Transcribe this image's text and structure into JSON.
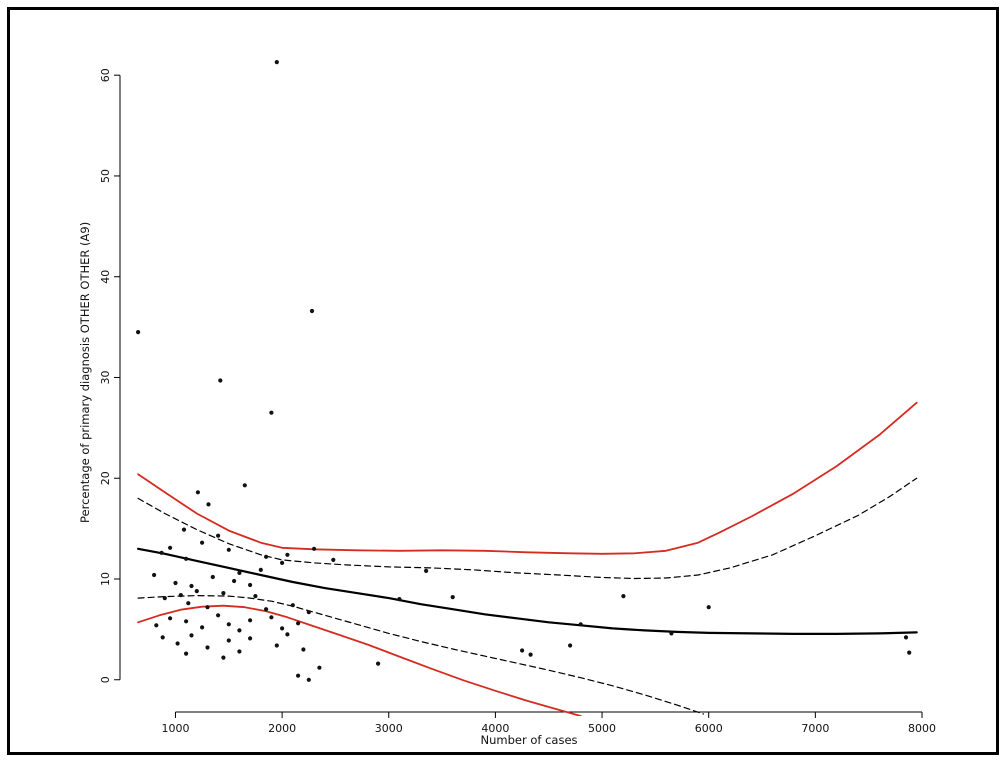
{
  "figure": {
    "frame_color": "#000000",
    "background": "#ffffff"
  },
  "chart_data": {
    "type": "scatter",
    "title": "",
    "xlabel": "Number of cases",
    "ylabel": "Percentage of primary diagnosis OTHER OTHER (A9)",
    "xlim": [
      480,
      8150
    ],
    "ylim": [
      -3.2,
      62.5
    ],
    "x_ticks": [
      1000,
      2000,
      3000,
      4000,
      5000,
      6000,
      7000,
      8000
    ],
    "y_ticks": [
      0,
      10,
      20,
      30,
      40,
      50,
      60
    ],
    "grid": false,
    "legend_position": "none",
    "point_color": "#111111",
    "point_radius": 2.1,
    "points": [
      [
        1950,
        61.3
      ],
      [
        2280,
        36.6
      ],
      [
        650,
        34.5
      ],
      [
        1420,
        29.7
      ],
      [
        1900,
        26.5
      ],
      [
        1650,
        19.3
      ],
      [
        1210,
        18.6
      ],
      [
        1310,
        17.4
      ],
      [
        1080,
        14.9
      ],
      [
        1400,
        14.3
      ],
      [
        950,
        13.1
      ],
      [
        1250,
        13.6
      ],
      [
        2300,
        13.0
      ],
      [
        1500,
        12.9
      ],
      [
        870,
        12.6
      ],
      [
        2050,
        12.4
      ],
      [
        1850,
        12.2
      ],
      [
        1100,
        12.0
      ],
      [
        2480,
        11.9
      ],
      [
        2000,
        11.6
      ],
      [
        800,
        10.4
      ],
      [
        1000,
        9.6
      ],
      [
        1150,
        9.3
      ],
      [
        1350,
        10.2
      ],
      [
        1550,
        9.8
      ],
      [
        1600,
        10.6
      ],
      [
        1700,
        9.4
      ],
      [
        1800,
        10.9
      ],
      [
        3350,
        10.8
      ],
      [
        900,
        8.1
      ],
      [
        1050,
        8.4
      ],
      [
        1120,
        7.6
      ],
      [
        1200,
        8.8
      ],
      [
        1300,
        7.2
      ],
      [
        1450,
        8.6
      ],
      [
        1750,
        8.3
      ],
      [
        1850,
        7.0
      ],
      [
        2100,
        7.4
      ],
      [
        2250,
        6.7
      ],
      [
        3100,
        8.0
      ],
      [
        3600,
        8.2
      ],
      [
        5200,
        8.3
      ],
      [
        6000,
        7.2
      ],
      [
        820,
        5.4
      ],
      [
        950,
        6.1
      ],
      [
        1100,
        5.8
      ],
      [
        1250,
        5.2
      ],
      [
        1400,
        6.4
      ],
      [
        1500,
        5.5
      ],
      [
        1600,
        4.9
      ],
      [
        1700,
        5.9
      ],
      [
        1900,
        6.2
      ],
      [
        2000,
        5.1
      ],
      [
        2150,
        5.6
      ],
      [
        4800,
        5.5
      ],
      [
        880,
        4.2
      ],
      [
        1020,
        3.6
      ],
      [
        1150,
        4.4
      ],
      [
        1300,
        3.2
      ],
      [
        1500,
        3.9
      ],
      [
        1700,
        4.1
      ],
      [
        1950,
        3.4
      ],
      [
        2050,
        4.5
      ],
      [
        2200,
        3.0
      ],
      [
        5650,
        4.6
      ],
      [
        4700,
        3.4
      ],
      [
        7850,
        4.2
      ],
      [
        1100,
        2.6
      ],
      [
        1450,
        2.2
      ],
      [
        1600,
        2.8
      ],
      [
        2150,
        0.4
      ],
      [
        2250,
        0.0
      ],
      [
        2350,
        1.2
      ],
      [
        2900,
        1.6
      ],
      [
        4250,
        2.9
      ],
      [
        4330,
        2.5
      ],
      [
        7880,
        2.7
      ]
    ],
    "series": [
      {
        "id": "loess-fit",
        "name": "smoothed fit (solid black)",
        "color": "#000000",
        "dash": "none",
        "width": 2.2,
        "points": [
          [
            650,
            13.0
          ],
          [
            900,
            12.5
          ],
          [
            1200,
            11.8
          ],
          [
            1500,
            11.1
          ],
          [
            1800,
            10.4
          ],
          [
            2100,
            9.7
          ],
          [
            2400,
            9.1
          ],
          [
            2700,
            8.6
          ],
          [
            3000,
            8.1
          ],
          [
            3300,
            7.5
          ],
          [
            3600,
            7.0
          ],
          [
            3900,
            6.5
          ],
          [
            4200,
            6.1
          ],
          [
            4500,
            5.7
          ],
          [
            4800,
            5.4
          ],
          [
            5100,
            5.1
          ],
          [
            5400,
            4.9
          ],
          [
            5700,
            4.75
          ],
          [
            6000,
            4.65
          ],
          [
            6400,
            4.6
          ],
          [
            6800,
            4.55
          ],
          [
            7200,
            4.55
          ],
          [
            7600,
            4.6
          ],
          [
            7950,
            4.7
          ]
        ]
      },
      {
        "id": "dashed-upper",
        "name": "upper confidence band (dashed)",
        "color": "#000000",
        "dash": "6,4",
        "width": 1.2,
        "points": [
          [
            650,
            18.0
          ],
          [
            900,
            16.5
          ],
          [
            1200,
            14.9
          ],
          [
            1500,
            13.5
          ],
          [
            1800,
            12.4
          ],
          [
            2000,
            11.9
          ],
          [
            2300,
            11.6
          ],
          [
            2600,
            11.4
          ],
          [
            3000,
            11.2
          ],
          [
            3400,
            11.1
          ],
          [
            3800,
            10.9
          ],
          [
            4200,
            10.6
          ],
          [
            4600,
            10.4
          ],
          [
            5000,
            10.15
          ],
          [
            5300,
            10.05
          ],
          [
            5600,
            10.1
          ],
          [
            5900,
            10.4
          ],
          [
            6200,
            11.1
          ],
          [
            6600,
            12.4
          ],
          [
            7000,
            14.3
          ],
          [
            7400,
            16.3
          ],
          [
            7700,
            18.2
          ],
          [
            7950,
            20.0
          ]
        ]
      },
      {
        "id": "dashed-lower",
        "name": "lower confidence band (dashed)",
        "color": "#000000",
        "dash": "6,4",
        "width": 1.2,
        "points": [
          [
            650,
            8.1
          ],
          [
            900,
            8.25
          ],
          [
            1200,
            8.35
          ],
          [
            1500,
            8.3
          ],
          [
            1700,
            8.1
          ],
          [
            1900,
            7.8
          ],
          [
            2100,
            7.3
          ],
          [
            2400,
            6.4
          ],
          [
            2700,
            5.5
          ],
          [
            3000,
            4.6
          ],
          [
            3300,
            3.8
          ],
          [
            3600,
            3.05
          ],
          [
            3900,
            2.35
          ],
          [
            4200,
            1.65
          ],
          [
            4500,
            0.95
          ],
          [
            4800,
            0.2
          ],
          [
            5100,
            -0.6
          ],
          [
            5400,
            -1.5
          ],
          [
            5700,
            -2.5
          ],
          [
            5950,
            -3.4
          ]
        ]
      },
      {
        "id": "red-upper",
        "name": "upper control limit (red)",
        "color": "#d62b20",
        "dash": "none",
        "width": 1.8,
        "points": [
          [
            650,
            20.4
          ],
          [
            900,
            18.6
          ],
          [
            1200,
            16.5
          ],
          [
            1500,
            14.8
          ],
          [
            1800,
            13.6
          ],
          [
            2000,
            13.1
          ],
          [
            2300,
            12.95
          ],
          [
            2700,
            12.85
          ],
          [
            3100,
            12.8
          ],
          [
            3500,
            12.85
          ],
          [
            3900,
            12.8
          ],
          [
            4300,
            12.65
          ],
          [
            4700,
            12.55
          ],
          [
            5000,
            12.5
          ],
          [
            5300,
            12.55
          ],
          [
            5600,
            12.8
          ],
          [
            5900,
            13.6
          ],
          [
            6100,
            14.6
          ],
          [
            6400,
            16.2
          ],
          [
            6800,
            18.5
          ],
          [
            7200,
            21.2
          ],
          [
            7600,
            24.3
          ],
          [
            7950,
            27.5
          ]
        ]
      },
      {
        "id": "red-lower",
        "name": "lower control limit (red)",
        "color": "#d62b20",
        "dash": "none",
        "width": 1.8,
        "points": [
          [
            650,
            5.7
          ],
          [
            850,
            6.4
          ],
          [
            1050,
            6.95
          ],
          [
            1250,
            7.25
          ],
          [
            1450,
            7.35
          ],
          [
            1650,
            7.2
          ],
          [
            1850,
            6.8
          ],
          [
            2050,
            6.2
          ],
          [
            2300,
            5.3
          ],
          [
            2550,
            4.4
          ],
          [
            2800,
            3.5
          ],
          [
            3100,
            2.3
          ],
          [
            3400,
            1.1
          ],
          [
            3700,
            -0.05
          ],
          [
            4000,
            -1.1
          ],
          [
            4300,
            -2.1
          ],
          [
            4600,
            -3.0
          ],
          [
            4800,
            -3.6
          ]
        ]
      }
    ]
  }
}
